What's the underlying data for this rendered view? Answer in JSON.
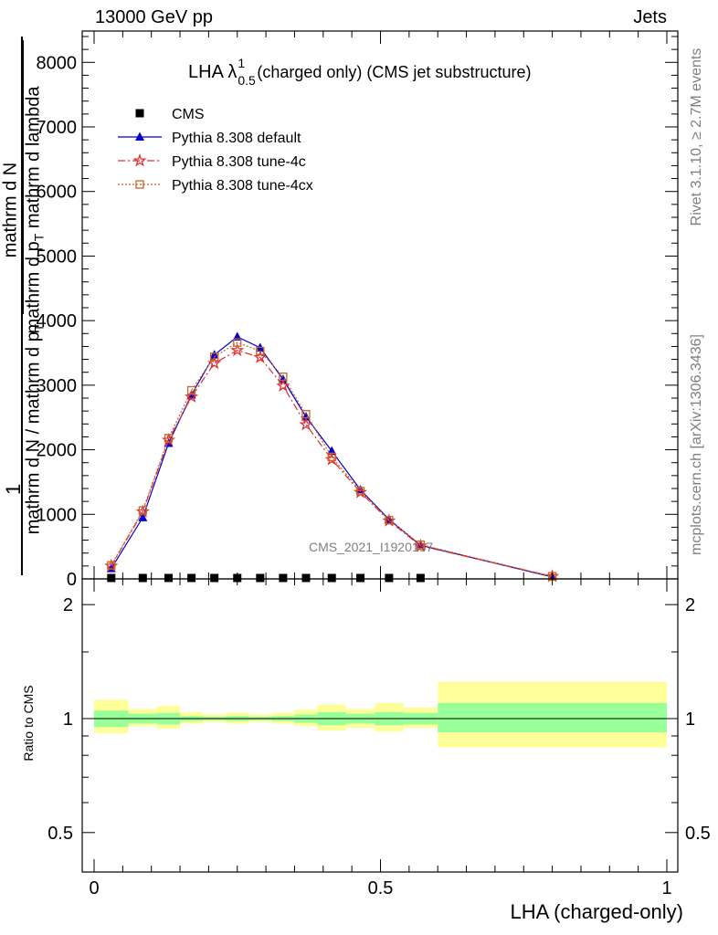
{
  "header": {
    "beam": "13000 GeV pp",
    "process": "Jets"
  },
  "side": {
    "rivet": "Rivet 3.1.10, ≥ 2.7M events",
    "mcplots": "mcplots.cern.ch [arXiv:1306.3436]"
  },
  "watermark": "CMS_2021_I1920187",
  "chart_data": [
    {
      "type": "line",
      "title_main": "LHA λ",
      "title_sup": "1",
      "title_sub": "0.5",
      "title_rest": "(charged only) (CMS jet substructure)",
      "ylabel_num": "mathrm d N",
      "ylabel_den": "mathrm d p",
      "ylabel_den_sub": "T",
      "ylabel_den_rest": " mathrm d lambda",
      "ylabel_outer_num": "1",
      "ylabel_outer_den": "mathrm d N / mathrm d p",
      "ylabel_outer_den_sub": "T",
      "xlim": [
        0,
        1
      ],
      "ylim": [
        0,
        8400
      ],
      "yticks": [
        0,
        1000,
        2000,
        3000,
        4000,
        5000,
        6000,
        7000,
        8000
      ],
      "ytick_labels": [
        "0",
        "1000",
        "2000",
        "3000",
        "4000",
        "5000",
        "6000",
        "7000",
        "8000"
      ],
      "x": [
        0.03,
        0.085,
        0.13,
        0.17,
        0.21,
        0.25,
        0.29,
        0.33,
        0.37,
        0.415,
        0.465,
        0.515,
        0.57,
        0.8
      ],
      "series": [
        {
          "name": "CMS",
          "color": "#000000",
          "marker": "square",
          "values": [
            0,
            0,
            0,
            0,
            0,
            0,
            0,
            0,
            0,
            0,
            0,
            0,
            0,
            null
          ]
        },
        {
          "name": "Pythia 8.308 default",
          "color": "#0000cc",
          "marker": "triangle",
          "dash": "",
          "values": [
            160,
            950,
            2100,
            2850,
            3470,
            3750,
            3580,
            3090,
            2510,
            1980,
            1380,
            920,
            520,
            30
          ]
        },
        {
          "name": "Pythia 8.308 tune-4c",
          "color": "#e03030",
          "marker": "star",
          "dash": "8,3,2,3",
          "values": [
            200,
            1040,
            2150,
            2820,
            3340,
            3540,
            3430,
            2990,
            2390,
            1850,
            1340,
            900,
            510,
            40
          ]
        },
        {
          "name": "Pythia 8.308 tune-4cx",
          "color": "#c86428",
          "marker": "open-square",
          "dash": "2,2",
          "values": [
            210,
            1060,
            2180,
            2920,
            3440,
            3660,
            3530,
            3130,
            2550,
            1890,
            1360,
            910,
            530,
            40
          ]
        }
      ]
    },
    {
      "type": "area",
      "ylabel": "Ratio to CMS",
      "xlabel": "LHA (charged-only)",
      "xlim": [
        0,
        1
      ],
      "ylim": [
        0.4,
        2.3
      ],
      "log_y": true,
      "yticks": [
        0.5,
        1,
        2
      ],
      "ytick_labels": [
        "0.5",
        "1",
        "2"
      ],
      "xticks": [
        0,
        0.5,
        1
      ],
      "xtick_labels": [
        "0",
        "0.5",
        "1"
      ],
      "bins": [
        0,
        0.06,
        0.11,
        0.15,
        0.19,
        0.23,
        0.27,
        0.31,
        0.35,
        0.39,
        0.44,
        0.49,
        0.54,
        0.6,
        1.0
      ],
      "band_inner": [
        [
          0.95,
          1.05
        ],
        [
          0.97,
          1.03
        ],
        [
          0.965,
          1.035
        ],
        [
          0.985,
          1.015
        ],
        [
          0.99,
          1.01
        ],
        [
          0.985,
          1.015
        ],
        [
          0.99,
          1.01
        ],
        [
          0.985,
          1.015
        ],
        [
          0.975,
          1.025
        ],
        [
          0.96,
          1.04
        ],
        [
          0.97,
          1.03
        ],
        [
          0.96,
          1.04
        ],
        [
          0.965,
          1.035
        ],
        [
          0.92,
          1.1
        ]
      ],
      "band_outer": [
        [
          0.915,
          1.12
        ],
        [
          0.955,
          1.06
        ],
        [
          0.94,
          1.08
        ],
        [
          0.97,
          1.04
        ],
        [
          0.98,
          1.025
        ],
        [
          0.97,
          1.035
        ],
        [
          0.98,
          1.025
        ],
        [
          0.97,
          1.035
        ],
        [
          0.955,
          1.055
        ],
        [
          0.93,
          1.09
        ],
        [
          0.945,
          1.06
        ],
        [
          0.925,
          1.1
        ],
        [
          0.945,
          1.07
        ],
        [
          0.84,
          1.25
        ]
      ],
      "band_inner_color": "#99ff99",
      "band_outer_color": "#ffff99",
      "ratio_line": 1
    }
  ]
}
